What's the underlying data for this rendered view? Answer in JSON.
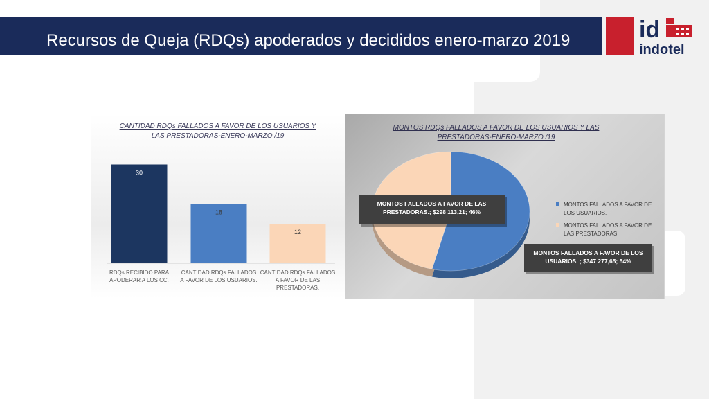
{
  "slide": {
    "title": "Recursos de Queja (RDQs) apoderados y decididos  enero-marzo 2019"
  },
  "logo": {
    "mark": "id",
    "name": "indotel"
  },
  "colors": {
    "title_bar": "#1a2b5a",
    "logo_red": "#c8202d",
    "bar_dark": "#1c3660",
    "bar_blue": "#4a7ec3",
    "bar_peach": "#fbd6b7",
    "pie_blue": "#4a7ec3",
    "pie_peach": "#fbd6b7"
  },
  "chart_data": [
    {
      "type": "bar",
      "title_line1": "CANTIDAD RDQs FALLADOS A FAVOR DE LOS USUARIOS Y",
      "title_line2": "LAS PRESTADORAS-ENERO-MARZO /19",
      "categories": [
        [
          "RDQs RECIBIDO PARA",
          "APODERAR A LOS CC."
        ],
        [
          "CANTIDAD RDQs FALLADOS",
          "A FAVOR DE LOS USUARIOS."
        ],
        [
          "CANTIDAD RDQs FALLADOS",
          "A FAVOR DE LAS",
          "PRESTADORAS."
        ]
      ],
      "values": [
        30,
        18,
        12
      ],
      "data_labels": [
        "30",
        "18",
        "12"
      ],
      "colors": [
        "#1c3660",
        "#4a7ec3",
        "#fbd6b7"
      ],
      "ylim": [
        0,
        32
      ],
      "grid": false
    },
    {
      "type": "pie",
      "title_line1": "MONTOS RDQs FALLADOS A FAVOR DE LOS  USUARIOS Y LAS",
      "title_line2": "PRESTADORAS-ENERO-MARZO /19",
      "slices": [
        {
          "name_lines": [
            "MONTOS  FALLADOS A FAVOR DE",
            "LOS USUARIOS."
          ],
          "value": 347277.65,
          "percent": 54,
          "color": "#4a7ec3",
          "label_lines": [
            "MONTOS  FALLADOS A FAVOR DE LOS",
            "USUARIOS. ; $347 277,65; 54%"
          ]
        },
        {
          "name_lines": [
            "MONTOS FALLADOS  A FAVOR DE",
            "LAS PRESTADORAS."
          ],
          "value": 298113.21,
          "percent": 46,
          "color": "#fbd6b7",
          "label_lines": [
            "MONTOS FALLADOS  A FAVOR DE LAS",
            "PRESTADORAS.; $298 113,21; 46%"
          ]
        }
      ],
      "legend_position": "right"
    }
  ]
}
